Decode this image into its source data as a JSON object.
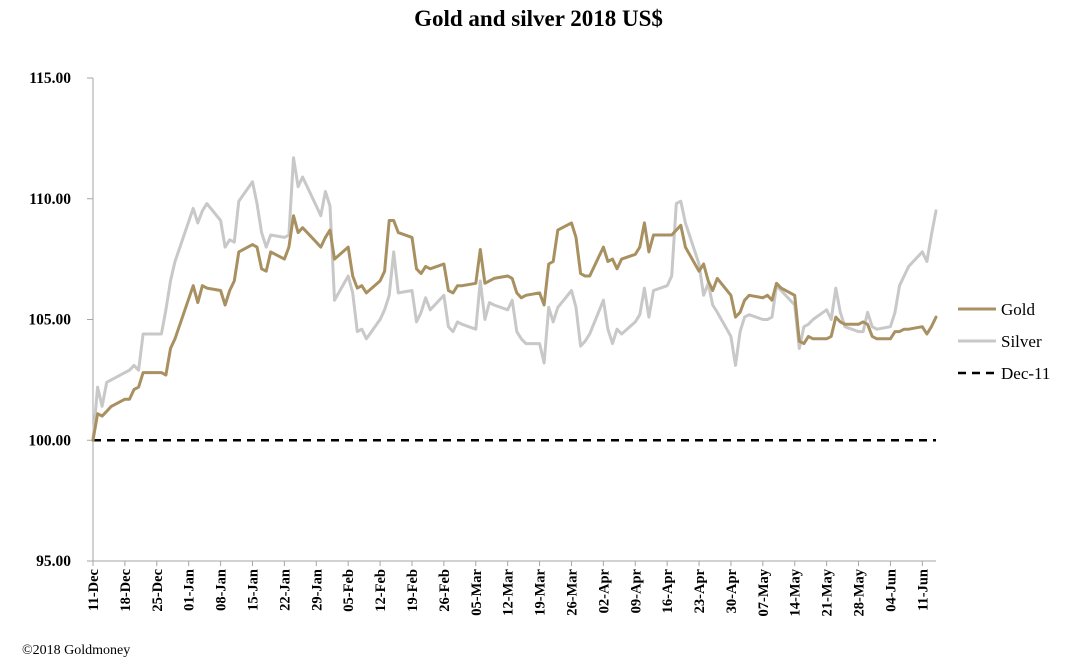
{
  "chart_data": {
    "type": "line",
    "title": "Gold and silver 2018  US$",
    "xlabel": "",
    "ylabel": "",
    "ylim": [
      95,
      115
    ],
    "yticks": [
      "95.00",
      "100.00",
      "105.00",
      "110.00",
      "115.00"
    ],
    "xticks": [
      "11-Dec",
      "18-Dec",
      "25-Dec",
      "01-Jan",
      "08-Jan",
      "15-Jan",
      "22-Jan",
      "29-Jan",
      "05-Feb",
      "12-Feb",
      "19-Feb",
      "26-Feb",
      "05-Mar",
      "12-Mar",
      "19-Mar",
      "26-Mar",
      "02-Apr",
      "09-Apr",
      "16-Apr",
      "23-Apr",
      "30-Apr",
      "07-May",
      "14-May",
      "21-May",
      "28-May",
      "04-Jun",
      "11-Jun"
    ],
    "xlim": [
      "2017-12-11",
      "2018-06-14"
    ],
    "legend_position": "right",
    "grid": false,
    "series": [
      {
        "name": "Gold",
        "color": "#a89060",
        "points": [
          [
            "2017-12-11",
            100.0
          ],
          [
            "2017-12-12",
            101.1
          ],
          [
            "2017-12-13",
            101.0
          ],
          [
            "2017-12-14",
            101.2
          ],
          [
            "2017-12-15",
            101.4
          ],
          [
            "2017-12-18",
            101.7
          ],
          [
            "2017-12-19",
            101.7
          ],
          [
            "2017-12-20",
            102.1
          ],
          [
            "2017-12-21",
            102.2
          ],
          [
            "2017-12-22",
            102.8
          ],
          [
            "2017-12-26",
            102.8
          ],
          [
            "2017-12-27",
            102.7
          ],
          [
            "2017-12-28",
            103.8
          ],
          [
            "2017-12-29",
            104.2
          ],
          [
            "2018-01-02",
            106.4
          ],
          [
            "2018-01-03",
            105.7
          ],
          [
            "2018-01-04",
            106.4
          ],
          [
            "2018-01-05",
            106.3
          ],
          [
            "2018-01-08",
            106.2
          ],
          [
            "2018-01-09",
            105.6
          ],
          [
            "2018-01-10",
            106.2
          ],
          [
            "2018-01-11",
            106.6
          ],
          [
            "2018-01-12",
            107.8
          ],
          [
            "2018-01-15",
            108.1
          ],
          [
            "2018-01-16",
            108.0
          ],
          [
            "2018-01-17",
            107.1
          ],
          [
            "2018-01-18",
            107.0
          ],
          [
            "2018-01-19",
            107.8
          ],
          [
            "2018-01-22",
            107.5
          ],
          [
            "2018-01-23",
            108.0
          ],
          [
            "2018-01-24",
            109.3
          ],
          [
            "2018-01-25",
            108.6
          ],
          [
            "2018-01-26",
            108.8
          ],
          [
            "2018-01-29",
            108.2
          ],
          [
            "2018-01-30",
            108.0
          ],
          [
            "2018-01-31",
            108.4
          ],
          [
            "2018-02-01",
            108.7
          ],
          [
            "2018-02-02",
            107.5
          ],
          [
            "2018-02-05",
            108.0
          ],
          [
            "2018-02-06",
            106.8
          ],
          [
            "2018-02-07",
            106.3
          ],
          [
            "2018-02-08",
            106.4
          ],
          [
            "2018-02-09",
            106.1
          ],
          [
            "2018-02-12",
            106.6
          ],
          [
            "2018-02-13",
            107.0
          ],
          [
            "2018-02-14",
            109.1
          ],
          [
            "2018-02-15",
            109.1
          ],
          [
            "2018-02-16",
            108.6
          ],
          [
            "2018-02-19",
            108.4
          ],
          [
            "2018-02-20",
            107.1
          ],
          [
            "2018-02-21",
            106.9
          ],
          [
            "2018-02-22",
            107.2
          ],
          [
            "2018-02-23",
            107.1
          ],
          [
            "2018-02-26",
            107.3
          ],
          [
            "2018-02-27",
            106.2
          ],
          [
            "2018-02-28",
            106.1
          ],
          [
            "2018-03-01",
            106.4
          ],
          [
            "2018-03-02",
            106.4
          ],
          [
            "2018-03-05",
            106.5
          ],
          [
            "2018-03-06",
            107.9
          ],
          [
            "2018-03-07",
            106.5
          ],
          [
            "2018-03-08",
            106.6
          ],
          [
            "2018-03-09",
            106.7
          ],
          [
            "2018-03-12",
            106.8
          ],
          [
            "2018-03-13",
            106.7
          ],
          [
            "2018-03-14",
            106.1
          ],
          [
            "2018-03-15",
            105.9
          ],
          [
            "2018-03-16",
            106.0
          ],
          [
            "2018-03-19",
            106.1
          ],
          [
            "2018-03-20",
            105.6
          ],
          [
            "2018-03-21",
            107.3
          ],
          [
            "2018-03-22",
            107.4
          ],
          [
            "2018-03-23",
            108.7
          ],
          [
            "2018-03-26",
            109.0
          ],
          [
            "2018-03-27",
            108.4
          ],
          [
            "2018-03-28",
            106.9
          ],
          [
            "2018-03-29",
            106.8
          ],
          [
            "2018-03-30",
            106.8
          ],
          [
            "2018-04-02",
            108.0
          ],
          [
            "2018-04-03",
            107.4
          ],
          [
            "2018-04-04",
            107.5
          ],
          [
            "2018-04-05",
            107.1
          ],
          [
            "2018-04-06",
            107.5
          ],
          [
            "2018-04-09",
            107.7
          ],
          [
            "2018-04-10",
            108.0
          ],
          [
            "2018-04-11",
            109.0
          ],
          [
            "2018-04-12",
            107.8
          ],
          [
            "2018-04-13",
            108.5
          ],
          [
            "2018-04-16",
            108.5
          ],
          [
            "2018-04-17",
            108.5
          ],
          [
            "2018-04-18",
            108.7
          ],
          [
            "2018-04-19",
            108.9
          ],
          [
            "2018-04-20",
            108.0
          ],
          [
            "2018-04-23",
            107.0
          ],
          [
            "2018-04-24",
            107.3
          ],
          [
            "2018-04-25",
            106.6
          ],
          [
            "2018-04-26",
            106.2
          ],
          [
            "2018-04-27",
            106.7
          ],
          [
            "2018-04-30",
            106.0
          ],
          [
            "2018-05-01",
            105.1
          ],
          [
            "2018-05-02",
            105.3
          ],
          [
            "2018-05-03",
            105.8
          ],
          [
            "2018-05-04",
            106.0
          ],
          [
            "2018-05-07",
            105.9
          ],
          [
            "2018-05-08",
            106.0
          ],
          [
            "2018-05-09",
            105.8
          ],
          [
            "2018-05-10",
            106.5
          ],
          [
            "2018-05-11",
            106.3
          ],
          [
            "2018-05-14",
            106.0
          ],
          [
            "2018-05-15",
            104.1
          ],
          [
            "2018-05-16",
            104.0
          ],
          [
            "2018-05-17",
            104.3
          ],
          [
            "2018-05-18",
            104.2
          ],
          [
            "2018-05-21",
            104.2
          ],
          [
            "2018-05-22",
            104.3
          ],
          [
            "2018-05-23",
            105.1
          ],
          [
            "2018-05-24",
            104.9
          ],
          [
            "2018-05-25",
            104.8
          ],
          [
            "2018-05-28",
            104.8
          ],
          [
            "2018-05-29",
            104.9
          ],
          [
            "2018-05-30",
            104.8
          ],
          [
            "2018-05-31",
            104.3
          ],
          [
            "2018-06-01",
            104.2
          ],
          [
            "2018-06-04",
            104.2
          ],
          [
            "2018-06-05",
            104.5
          ],
          [
            "2018-06-06",
            104.5
          ],
          [
            "2018-06-07",
            104.6
          ],
          [
            "2018-06-08",
            104.6
          ],
          [
            "2018-06-11",
            104.7
          ],
          [
            "2018-06-12",
            104.4
          ],
          [
            "2018-06-13",
            104.7
          ],
          [
            "2018-06-14",
            105.1
          ]
        ]
      },
      {
        "name": "Silver",
        "color": "#c8c8c8",
        "points": [
          [
            "2017-12-11",
            100.0
          ],
          [
            "2017-12-12",
            102.2
          ],
          [
            "2017-12-13",
            101.4
          ],
          [
            "2017-12-14",
            102.4
          ],
          [
            "2017-12-15",
            102.5
          ],
          [
            "2017-12-18",
            102.8
          ],
          [
            "2017-12-19",
            102.9
          ],
          [
            "2017-12-20",
            103.1
          ],
          [
            "2017-12-21",
            102.9
          ],
          [
            "2017-12-22",
            104.4
          ],
          [
            "2017-12-26",
            104.4
          ],
          [
            "2017-12-27",
            105.4
          ],
          [
            "2017-12-28",
            106.6
          ],
          [
            "2017-12-29",
            107.4
          ],
          [
            "2018-01-02",
            109.6
          ],
          [
            "2018-01-03",
            109.0
          ],
          [
            "2018-01-04",
            109.5
          ],
          [
            "2018-01-05",
            109.8
          ],
          [
            "2018-01-08",
            109.1
          ],
          [
            "2018-01-09",
            108.0
          ],
          [
            "2018-01-10",
            108.3
          ],
          [
            "2018-01-11",
            108.2
          ],
          [
            "2018-01-12",
            109.9
          ],
          [
            "2018-01-15",
            110.7
          ],
          [
            "2018-01-16",
            109.8
          ],
          [
            "2018-01-17",
            108.6
          ],
          [
            "2018-01-18",
            108.0
          ],
          [
            "2018-01-19",
            108.5
          ],
          [
            "2018-01-22",
            108.4
          ],
          [
            "2018-01-23",
            108.5
          ],
          [
            "2018-01-24",
            111.7
          ],
          [
            "2018-01-25",
            110.5
          ],
          [
            "2018-01-26",
            110.9
          ],
          [
            "2018-01-29",
            109.7
          ],
          [
            "2018-01-30",
            109.3
          ],
          [
            "2018-01-31",
            110.3
          ],
          [
            "2018-02-01",
            109.7
          ],
          [
            "2018-02-02",
            105.8
          ],
          [
            "2018-02-05",
            106.8
          ],
          [
            "2018-02-06",
            106.1
          ],
          [
            "2018-02-07",
            104.5
          ],
          [
            "2018-02-08",
            104.6
          ],
          [
            "2018-02-09",
            104.2
          ],
          [
            "2018-02-12",
            105.0
          ],
          [
            "2018-02-13",
            105.4
          ],
          [
            "2018-02-14",
            106.0
          ],
          [
            "2018-02-15",
            107.8
          ],
          [
            "2018-02-16",
            106.1
          ],
          [
            "2018-02-19",
            106.2
          ],
          [
            "2018-02-20",
            104.9
          ],
          [
            "2018-02-21",
            105.3
          ],
          [
            "2018-02-22",
            105.9
          ],
          [
            "2018-02-23",
            105.4
          ],
          [
            "2018-02-26",
            106.0
          ],
          [
            "2018-02-27",
            104.7
          ],
          [
            "2018-02-28",
            104.5
          ],
          [
            "2018-03-01",
            104.9
          ],
          [
            "2018-03-02",
            104.8
          ],
          [
            "2018-03-05",
            104.6
          ],
          [
            "2018-03-06",
            106.6
          ],
          [
            "2018-03-07",
            105.0
          ],
          [
            "2018-03-08",
            105.7
          ],
          [
            "2018-03-09",
            105.6
          ],
          [
            "2018-03-12",
            105.4
          ],
          [
            "2018-03-13",
            105.8
          ],
          [
            "2018-03-14",
            104.5
          ],
          [
            "2018-03-15",
            104.2
          ],
          [
            "2018-03-16",
            104.0
          ],
          [
            "2018-03-19",
            104.0
          ],
          [
            "2018-03-20",
            103.2
          ],
          [
            "2018-03-21",
            105.5
          ],
          [
            "2018-03-22",
            104.9
          ],
          [
            "2018-03-23",
            105.5
          ],
          [
            "2018-03-26",
            106.2
          ],
          [
            "2018-03-27",
            105.5
          ],
          [
            "2018-03-28",
            103.9
          ],
          [
            "2018-03-29",
            104.1
          ],
          [
            "2018-03-30",
            104.4
          ],
          [
            "2018-04-02",
            105.8
          ],
          [
            "2018-04-03",
            104.6
          ],
          [
            "2018-04-04",
            104.0
          ],
          [
            "2018-04-05",
            104.6
          ],
          [
            "2018-04-06",
            104.4
          ],
          [
            "2018-04-09",
            104.9
          ],
          [
            "2018-04-10",
            105.2
          ],
          [
            "2018-04-11",
            106.3
          ],
          [
            "2018-04-12",
            105.1
          ],
          [
            "2018-04-13",
            106.2
          ],
          [
            "2018-04-16",
            106.4
          ],
          [
            "2018-04-17",
            106.8
          ],
          [
            "2018-04-18",
            109.8
          ],
          [
            "2018-04-19",
            109.9
          ],
          [
            "2018-04-20",
            109.0
          ],
          [
            "2018-04-23",
            107.3
          ],
          [
            "2018-04-24",
            106.0
          ],
          [
            "2018-04-25",
            106.5
          ],
          [
            "2018-04-26",
            105.6
          ],
          [
            "2018-04-27",
            105.3
          ],
          [
            "2018-04-30",
            104.3
          ],
          [
            "2018-05-01",
            103.1
          ],
          [
            "2018-05-02",
            104.5
          ],
          [
            "2018-05-03",
            105.1
          ],
          [
            "2018-05-04",
            105.2
          ],
          [
            "2018-05-07",
            105.0
          ],
          [
            "2018-05-08",
            105.0
          ],
          [
            "2018-05-09",
            105.1
          ],
          [
            "2018-05-10",
            106.4
          ],
          [
            "2018-05-11",
            106.2
          ],
          [
            "2018-05-14",
            105.6
          ],
          [
            "2018-05-15",
            103.8
          ],
          [
            "2018-05-16",
            104.7
          ],
          [
            "2018-05-17",
            104.8
          ],
          [
            "2018-05-18",
            105.0
          ],
          [
            "2018-05-21",
            105.4
          ],
          [
            "2018-05-22",
            105.0
          ],
          [
            "2018-05-23",
            106.3
          ],
          [
            "2018-05-24",
            105.3
          ],
          [
            "2018-05-25",
            104.7
          ],
          [
            "2018-05-28",
            104.5
          ],
          [
            "2018-05-29",
            104.5
          ],
          [
            "2018-05-30",
            105.3
          ],
          [
            "2018-05-31",
            104.7
          ],
          [
            "2018-06-01",
            104.6
          ],
          [
            "2018-06-04",
            104.7
          ],
          [
            "2018-06-05",
            105.3
          ],
          [
            "2018-06-06",
            106.4
          ],
          [
            "2018-06-07",
            106.8
          ],
          [
            "2018-06-08",
            107.2
          ],
          [
            "2018-06-11",
            107.8
          ],
          [
            "2018-06-12",
            107.4
          ],
          [
            "2018-06-13",
            108.5
          ],
          [
            "2018-06-14",
            109.5
          ]
        ]
      },
      {
        "name": "Dec-11",
        "color": "#000000",
        "dashed": true,
        "points": [
          [
            "2017-12-11",
            100.0
          ],
          [
            "2018-06-14",
            100.0
          ]
        ]
      }
    ]
  },
  "footer": {
    "copyright": "©2018 Goldmoney"
  }
}
